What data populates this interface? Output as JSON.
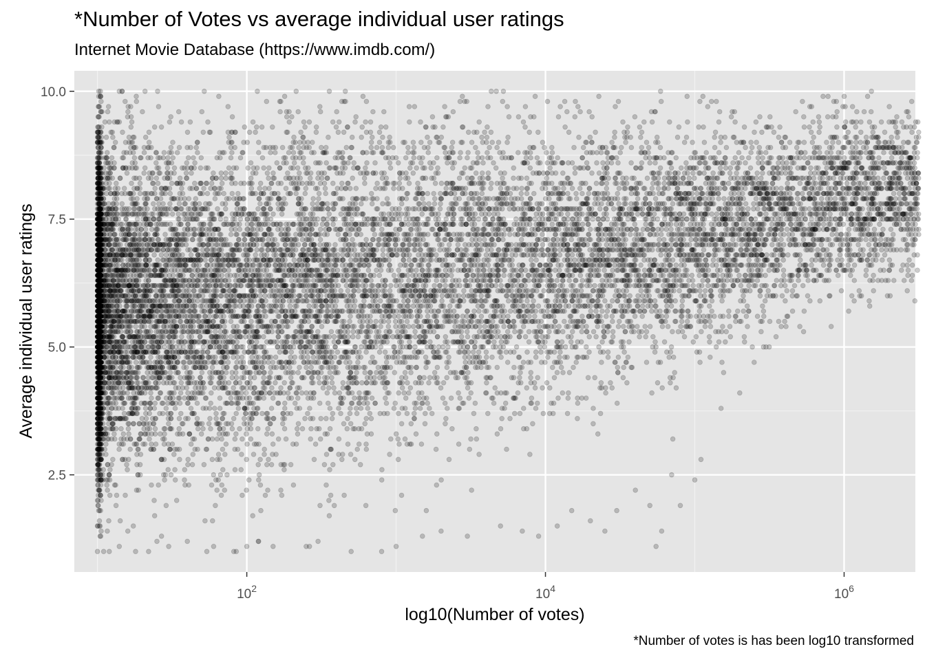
{
  "chart_data": {
    "type": "scatter",
    "title": "*Number of Votes vs average individual user ratings",
    "subtitle": "Internet Movie Database (https://www.imdb.com/)",
    "caption": "*Number of votes is has been log10 transformed",
    "xlabel": "log10(Number of votes)",
    "ylabel": "Average individual user ratings",
    "x_scale": "log10",
    "xlim": [
      7,
      3000000
    ],
    "ylim": [
      0.6,
      10.4
    ],
    "x_ticks": [
      {
        "value": 100,
        "base": "10",
        "exp": "2"
      },
      {
        "value": 10000,
        "base": "10",
        "exp": "4"
      },
      {
        "value": 1000000,
        "base": "10",
        "exp": "6"
      }
    ],
    "y_ticks": [
      {
        "value": 2.5,
        "label": "2.5"
      },
      {
        "value": 5.0,
        "label": "5.0"
      },
      {
        "value": 7.5,
        "label": "7.5"
      },
      {
        "value": 10.0,
        "label": "10.0"
      }
    ],
    "grid": true,
    "point_color": "#000000",
    "point_alpha": 0.2,
    "panel_background": "#e5e5e5",
    "points": [
      [
        10,
        1.0
      ],
      [
        10,
        1.5
      ],
      [
        10,
        2.0
      ],
      [
        10,
        2.5
      ],
      [
        10,
        3.0
      ],
      [
        10,
        3.5
      ],
      [
        10,
        4.0
      ],
      [
        10,
        4.5
      ],
      [
        10,
        5.0
      ],
      [
        10,
        5.5
      ],
      [
        10,
        6.0
      ],
      [
        10,
        6.5
      ],
      [
        10,
        7.0
      ],
      [
        10,
        7.5
      ],
      [
        10,
        8.0
      ],
      [
        10,
        8.5
      ],
      [
        10,
        9.0
      ],
      [
        10,
        9.2
      ],
      [
        11,
        1.0
      ],
      [
        12,
        1.0
      ],
      [
        13,
        9.4
      ],
      [
        14,
        1.1
      ],
      [
        14,
        10.0
      ],
      [
        16,
        9.6
      ],
      [
        17,
        9.4
      ],
      [
        18,
        1.0
      ],
      [
        20,
        9.6
      ],
      [
        22,
        1.0
      ],
      [
        25,
        1.2
      ],
      [
        30,
        1.1
      ],
      [
        35,
        9.6
      ],
      [
        40,
        1.2
      ],
      [
        50,
        9.6
      ],
      [
        60,
        1.1
      ],
      [
        80,
        9.5
      ],
      [
        85,
        1.0
      ],
      [
        100,
        1.1
      ],
      [
        110,
        9.4
      ],
      [
        120,
        1.2
      ],
      [
        150,
        1.1
      ],
      [
        200,
        9.5
      ],
      [
        250,
        1.1
      ],
      [
        300,
        1.2
      ],
      [
        400,
        9.6
      ],
      [
        500,
        1.0
      ],
      [
        700,
        9.6
      ],
      [
        800,
        1.0
      ],
      [
        1000,
        1.1
      ],
      [
        1500,
        1.3
      ],
      [
        2000,
        1.4
      ],
      [
        3000,
        1.3
      ],
      [
        5000,
        1.5
      ],
      [
        7000,
        1.4
      ],
      [
        9000,
        1.3
      ],
      [
        12000,
        1.5
      ],
      [
        15000,
        1.8
      ],
      [
        20000,
        1.6
      ],
      [
        25000,
        1.4
      ],
      [
        30000,
        1.8
      ],
      [
        40000,
        2.2
      ],
      [
        50000,
        1.9
      ],
      [
        55000,
        1.1
      ],
      [
        60000,
        1.4
      ],
      [
        70000,
        2.5
      ],
      [
        80000,
        1.9
      ],
      [
        100000,
        2.4
      ],
      [
        110000,
        2.8
      ],
      [
        150000,
        3.8
      ],
      [
        200000,
        4.1
      ],
      [
        250000,
        4.7
      ],
      [
        300000,
        5.0
      ],
      [
        350000,
        5.2
      ],
      [
        400000,
        5.5
      ],
      [
        450000,
        6.0
      ],
      [
        500000,
        6.5
      ],
      [
        600000,
        7.2
      ],
      [
        700000,
        7.8
      ],
      [
        800000,
        8.0
      ],
      [
        900000,
        8.4
      ],
      [
        1000000,
        8.5
      ],
      [
        1200000,
        8.6
      ],
      [
        1500000,
        8.8
      ],
      [
        2000000,
        9.0
      ],
      [
        2500000,
        9.3
      ]
    ]
  }
}
